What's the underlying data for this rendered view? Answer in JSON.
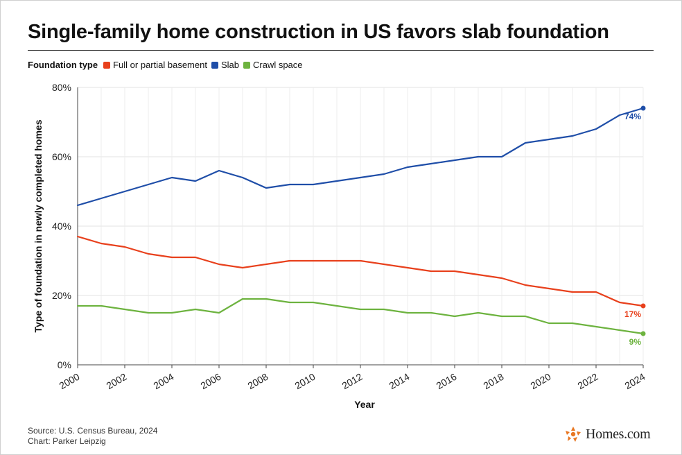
{
  "title": "Single-family home construction in US favors slab foundation",
  "legend": {
    "title": "Foundation type",
    "items": [
      "Full or partial basement",
      "Slab",
      "Crawl space"
    ]
  },
  "footer": {
    "source": "Source: U.S. Census Bureau, 2024",
    "credit": "Chart: Parker Leipzig"
  },
  "brand": {
    "name": "Homes.com",
    "color": "#e87722"
  },
  "chart_data": {
    "type": "line",
    "xlabel": "Year",
    "ylabel": "Type of foundation in newly completed homes",
    "xlim": [
      2000,
      2024
    ],
    "ylim": [
      0,
      80
    ],
    "x_ticks": [
      "2000",
      "2002",
      "2004",
      "2006",
      "2008",
      "2010",
      "2012",
      "2014",
      "2016",
      "2018",
      "2020",
      "2022",
      "2024"
    ],
    "y_ticks": [
      "0%",
      "20%",
      "40%",
      "60%",
      "80%"
    ],
    "grid": true,
    "legend_position": "top-left",
    "x": [
      2000,
      2001,
      2002,
      2003,
      2004,
      2005,
      2006,
      2007,
      2008,
      2009,
      2010,
      2011,
      2012,
      2013,
      2014,
      2015,
      2016,
      2017,
      2018,
      2019,
      2020,
      2021,
      2022,
      2023,
      2024
    ],
    "series": [
      {
        "name": "Full or partial basement",
        "color": "#e8401c",
        "end_label": "17%",
        "values": [
          37,
          35,
          34,
          32,
          31,
          31,
          29,
          28,
          29,
          30,
          30,
          30,
          30,
          29,
          28,
          27,
          27,
          26,
          25,
          23,
          22,
          21,
          21,
          18,
          17
        ]
      },
      {
        "name": "Slab",
        "color": "#1f4ea8",
        "end_label": "74%",
        "values": [
          46,
          48,
          50,
          52,
          54,
          53,
          56,
          54,
          51,
          52,
          52,
          53,
          54,
          55,
          57,
          58,
          59,
          60,
          60,
          64,
          65,
          66,
          68,
          72,
          74
        ]
      },
      {
        "name": "Crawl space",
        "color": "#6db33f",
        "end_label": "9%",
        "values": [
          17,
          17,
          16,
          15,
          15,
          16,
          15,
          19,
          19,
          18,
          18,
          17,
          16,
          16,
          15,
          15,
          14,
          15,
          14,
          14,
          12,
          12,
          11,
          10,
          9
        ]
      }
    ]
  }
}
